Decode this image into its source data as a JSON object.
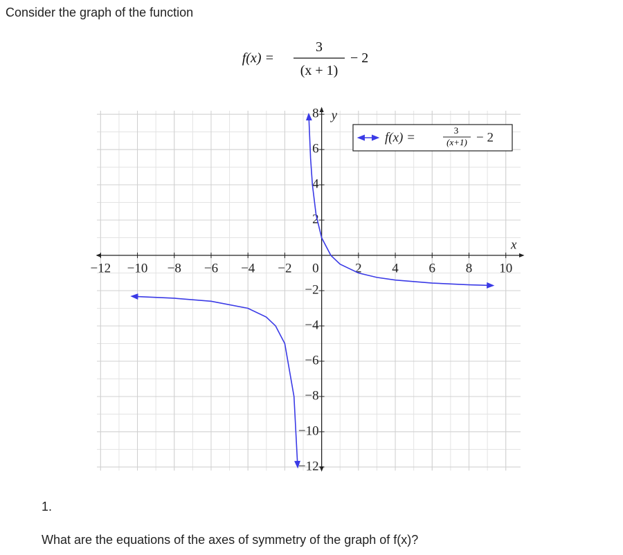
{
  "header": {
    "intro": "Consider the graph of the function"
  },
  "formula": {
    "lhs": "f(x) =",
    "numerator": "3",
    "denominator": "(x + 1)",
    "rest": "− 2"
  },
  "chart_data": {
    "type": "line",
    "x_label": "x",
    "y_label": "y",
    "legend_label": {
      "lhs": "f(x) =",
      "numerator": "3",
      "denominator": "(x+1)",
      "rest": "− 2"
    },
    "x": [
      -10.3,
      -8,
      -6,
      -4,
      -3,
      -2.5,
      -2,
      -1.5,
      -1.3,
      -1,
      -0.7,
      -0.6,
      -0.5,
      -0.3,
      0,
      0.5,
      1,
      2,
      3,
      4,
      6,
      8,
      9.3
    ],
    "series": [
      {
        "color": "#3a3ae6",
        "values": [
          -2.32,
          -2.43,
          -2.6,
          -3,
          -3.5,
          -4,
          -5,
          -8,
          -12,
          null,
          8,
          5.5,
          4,
          2.29,
          1,
          0,
          -0.5,
          -1,
          -1.25,
          -1.4,
          -1.57,
          -1.67,
          -1.71
        ]
      }
    ],
    "xlim": [
      -12.2,
      10.8
    ],
    "ylim": [
      -12.2,
      8.2
    ],
    "xticks": [
      {
        "value": -12,
        "label": "−12"
      },
      {
        "value": -10,
        "label": "−10"
      },
      {
        "value": -8,
        "label": "−8"
      },
      {
        "value": -6,
        "label": "−6"
      },
      {
        "value": -4,
        "label": "−4"
      },
      {
        "value": -2,
        "label": "−2"
      },
      0,
      2,
      4,
      6,
      8,
      10
    ],
    "yticks": [
      {
        "value": -12,
        "label": "−12"
      },
      {
        "value": -10,
        "label": "−10"
      },
      {
        "value": -8,
        "label": "−8"
      },
      {
        "value": -6,
        "label": "−6"
      },
      {
        "value": -4,
        "label": "−4"
      },
      {
        "value": -2,
        "label": "−2"
      },
      2,
      4,
      6,
      8
    ],
    "grid": true
  },
  "question": {
    "number": "1.",
    "text": "What are the equations of the axes of symmetry of the graph of f(x)?"
  }
}
